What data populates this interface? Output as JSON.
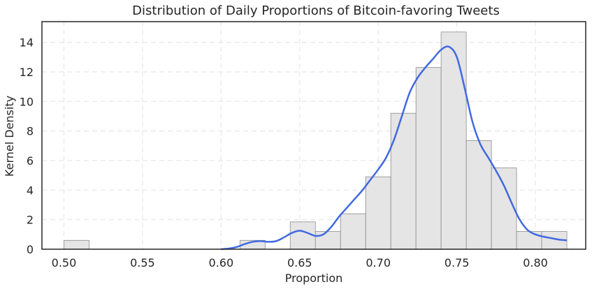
{
  "chart_data": {
    "type": "bar",
    "title": "Distribution of Daily Proportions of Bitcoin-favoring Tweets",
    "xlabel": "Proportion",
    "ylabel": "Kernel Density",
    "xlim": [
      0.486,
      0.832
    ],
    "ylim": [
      0,
      15.4
    ],
    "xticks": [
      0.5,
      0.55,
      0.6,
      0.65,
      0.7,
      0.75,
      0.8
    ],
    "xtick_labels": [
      "0.50",
      "0.55",
      "0.60",
      "0.65",
      "0.70",
      "0.75",
      "0.80"
    ],
    "yticks": [
      0,
      2,
      4,
      6,
      8,
      10,
      12,
      14
    ],
    "ytick_labels": [
      "0",
      "2",
      "4",
      "6",
      "8",
      "10",
      "12",
      "14"
    ],
    "grid": true,
    "histogram": {
      "bin_edges": [
        0.5,
        0.516,
        0.532,
        0.548,
        0.564,
        0.58,
        0.596,
        0.612,
        0.628,
        0.644,
        0.66,
        0.676,
        0.692,
        0.708,
        0.724,
        0.74,
        0.756,
        0.772,
        0.788,
        0.804,
        0.82
      ],
      "values": [
        0.6,
        0,
        0,
        0,
        0,
        0,
        0,
        0.6,
        0,
        1.85,
        1.2,
        2.4,
        4.9,
        9.2,
        12.3,
        14.7,
        7.35,
        5.5,
        1.2,
        1.2
      ],
      "fill": "#e5e5e5",
      "edge": "#8c8c8c"
    },
    "kde": {
      "color": "#4169e1",
      "x": [
        0.6,
        0.605,
        0.61,
        0.615,
        0.62,
        0.625,
        0.63,
        0.635,
        0.64,
        0.645,
        0.65,
        0.655,
        0.66,
        0.665,
        0.67,
        0.675,
        0.68,
        0.685,
        0.69,
        0.695,
        0.7,
        0.705,
        0.71,
        0.715,
        0.72,
        0.725,
        0.73,
        0.735,
        0.74,
        0.745,
        0.75,
        0.755,
        0.76,
        0.765,
        0.77,
        0.775,
        0.78,
        0.785,
        0.79,
        0.795,
        0.8,
        0.805,
        0.81,
        0.815,
        0.82
      ],
      "y": [
        0.0,
        0.05,
        0.15,
        0.35,
        0.5,
        0.55,
        0.5,
        0.55,
        0.8,
        1.1,
        1.25,
        1.1,
        0.9,
        1.0,
        1.5,
        2.2,
        2.8,
        3.4,
        4.0,
        4.7,
        5.4,
        6.2,
        7.4,
        9.0,
        10.6,
        11.6,
        12.3,
        12.9,
        13.5,
        13.7,
        13.0,
        10.9,
        8.6,
        7.1,
        6.2,
        5.3,
        4.3,
        3.1,
        2.0,
        1.3,
        1.0,
        0.85,
        0.75,
        0.65,
        0.6
      ]
    }
  }
}
